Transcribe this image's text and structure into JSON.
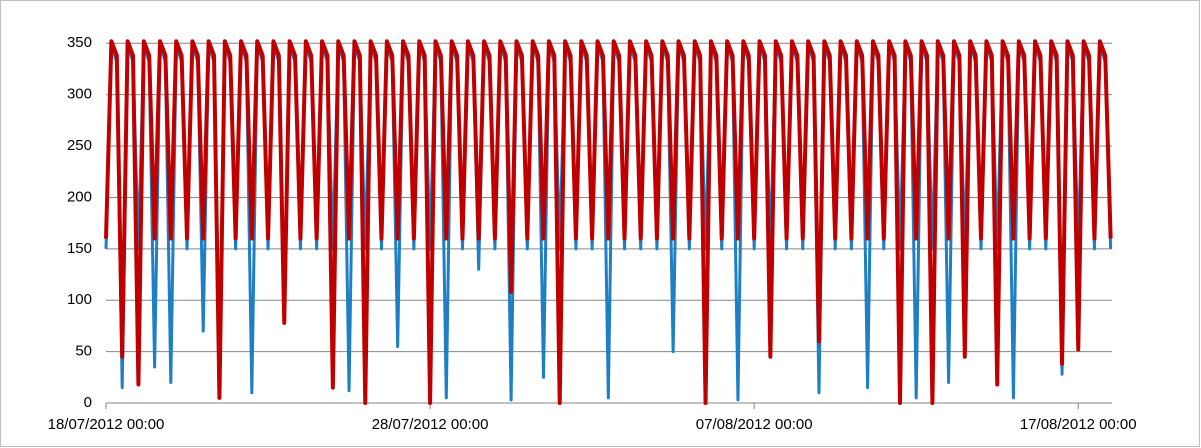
{
  "chart_data": {
    "type": "line",
    "x": [
      "18/07/2012 00:00",
      "18/07/2012 04:00",
      "18/07/2012 08:00",
      "18/07/2012 12:00",
      "18/07/2012 16:00",
      "18/07/2012 20:00",
      "19/07/2012 00:00",
      "19/07/2012 04:00",
      "19/07/2012 08:00",
      "19/07/2012 12:00",
      "19/07/2012 16:00",
      "19/07/2012 20:00",
      "20/07/2012 00:00",
      "20/07/2012 04:00",
      "20/07/2012 08:00",
      "20/07/2012 12:00",
      "20/07/2012 16:00",
      "20/07/2012 20:00",
      "21/07/2012 00:00",
      "21/07/2012 04:00",
      "21/07/2012 08:00",
      "21/07/2012 12:00",
      "21/07/2012 16:00",
      "21/07/2012 20:00",
      "22/07/2012 00:00",
      "22/07/2012 04:00",
      "22/07/2012 08:00",
      "22/07/2012 12:00",
      "22/07/2012 16:00",
      "22/07/2012 20:00",
      "23/07/2012 00:00",
      "23/07/2012 04:00",
      "23/07/2012 08:00",
      "23/07/2012 12:00",
      "23/07/2012 16:00",
      "23/07/2012 20:00",
      "24/07/2012 00:00",
      "24/07/2012 04:00",
      "24/07/2012 08:00",
      "24/07/2012 12:00",
      "24/07/2012 16:00",
      "24/07/2012 20:00",
      "25/07/2012 00:00",
      "25/07/2012 04:00",
      "25/07/2012 08:00",
      "25/07/2012 12:00",
      "25/07/2012 16:00",
      "25/07/2012 20:00",
      "26/07/2012 00:00",
      "26/07/2012 04:00",
      "26/07/2012 08:00",
      "26/07/2012 12:00",
      "26/07/2012 16:00",
      "26/07/2012 20:00",
      "27/07/2012 00:00",
      "27/07/2012 04:00",
      "27/07/2012 08:00",
      "27/07/2012 12:00",
      "27/07/2012 16:00",
      "27/07/2012 20:00",
      "28/07/2012 00:00",
      "28/07/2012 04:00",
      "28/07/2012 08:00",
      "28/07/2012 12:00",
      "28/07/2012 16:00",
      "28/07/2012 20:00",
      "29/07/2012 00:00",
      "29/07/2012 04:00",
      "29/07/2012 08:00",
      "29/07/2012 12:00",
      "29/07/2012 16:00",
      "29/07/2012 20:00",
      "30/07/2012 00:00",
      "30/07/2012 04:00",
      "30/07/2012 08:00",
      "30/07/2012 12:00",
      "30/07/2012 16:00",
      "30/07/2012 20:00",
      "31/07/2012 00:00",
      "31/07/2012 04:00",
      "31/07/2012 08:00",
      "31/07/2012 12:00",
      "31/07/2012 16:00",
      "31/07/2012 20:00",
      "01/08/2012 00:00",
      "01/08/2012 04:00",
      "01/08/2012 08:00",
      "01/08/2012 12:00",
      "01/08/2012 16:00",
      "01/08/2012 20:00",
      "02/08/2012 00:00",
      "02/08/2012 04:00",
      "02/08/2012 08:00",
      "02/08/2012 12:00",
      "02/08/2012 16:00",
      "02/08/2012 20:00",
      "03/08/2012 00:00",
      "03/08/2012 04:00",
      "03/08/2012 08:00",
      "03/08/2012 12:00",
      "03/08/2012 16:00",
      "03/08/2012 20:00",
      "04/08/2012 00:00",
      "04/08/2012 04:00",
      "04/08/2012 08:00",
      "04/08/2012 12:00",
      "04/08/2012 16:00",
      "04/08/2012 20:00",
      "05/08/2012 00:00",
      "05/08/2012 04:00",
      "05/08/2012 08:00",
      "05/08/2012 12:00",
      "05/08/2012 16:00",
      "05/08/2012 20:00",
      "06/08/2012 00:00",
      "06/08/2012 04:00",
      "06/08/2012 08:00",
      "06/08/2012 12:00",
      "06/08/2012 16:00",
      "06/08/2012 20:00",
      "07/08/2012 00:00",
      "07/08/2012 04:00",
      "07/08/2012 08:00",
      "07/08/2012 12:00",
      "07/08/2012 16:00",
      "07/08/2012 20:00",
      "08/08/2012 00:00",
      "08/08/2012 04:00",
      "08/08/2012 08:00",
      "08/08/2012 12:00",
      "08/08/2012 16:00",
      "08/08/2012 20:00",
      "09/08/2012 00:00",
      "09/08/2012 04:00",
      "09/08/2012 08:00",
      "09/08/2012 12:00",
      "09/08/2012 16:00",
      "09/08/2012 20:00",
      "10/08/2012 00:00",
      "10/08/2012 04:00",
      "10/08/2012 08:00",
      "10/08/2012 12:00",
      "10/08/2012 16:00",
      "10/08/2012 20:00",
      "11/08/2012 00:00",
      "11/08/2012 04:00",
      "11/08/2012 08:00",
      "11/08/2012 12:00",
      "11/08/2012 16:00",
      "11/08/2012 20:00",
      "12/08/2012 00:00",
      "12/08/2012 04:00",
      "12/08/2012 08:00",
      "12/08/2012 12:00",
      "12/08/2012 16:00",
      "12/08/2012 20:00",
      "13/08/2012 00:00",
      "13/08/2012 04:00",
      "13/08/2012 08:00",
      "13/08/2012 12:00",
      "13/08/2012 16:00",
      "13/08/2012 20:00",
      "14/08/2012 00:00",
      "14/08/2012 04:00",
      "14/08/2012 08:00",
      "14/08/2012 12:00",
      "14/08/2012 16:00",
      "14/08/2012 20:00",
      "15/08/2012 00:00",
      "15/08/2012 04:00",
      "15/08/2012 08:00",
      "15/08/2012 12:00",
      "15/08/2012 16:00",
      "15/08/2012 20:00",
      "16/08/2012 00:00",
      "16/08/2012 04:00",
      "16/08/2012 08:00",
      "16/08/2012 12:00",
      "16/08/2012 16:00",
      "16/08/2012 20:00",
      "17/08/2012 00:00",
      "17/08/2012 04:00",
      "17/08/2012 08:00",
      "17/08/2012 12:00",
      "17/08/2012 16:00",
      "17/08/2012 20:00",
      "18/08/2012 00:00"
    ],
    "series": [
      {
        "color": "#1f7fc4",
        "values": [
          150,
          348,
          332,
          15,
          348,
          332,
          150,
          348,
          332,
          35,
          348,
          332,
          20,
          348,
          332,
          150,
          348,
          332,
          70,
          348,
          332,
          40,
          348,
          332,
          150,
          348,
          332,
          10,
          348,
          332,
          150,
          348,
          332,
          90,
          348,
          332,
          150,
          348,
          332,
          150,
          348,
          332,
          150,
          348,
          332,
          12,
          348,
          332,
          150,
          348,
          332,
          150,
          348,
          332,
          55,
          348,
          332,
          150,
          348,
          332,
          150,
          348,
          332,
          5,
          348,
          332,
          150,
          348,
          332,
          130,
          348,
          332,
          150,
          348,
          332,
          3,
          348,
          332,
          150,
          348,
          332,
          25,
          348,
          332,
          150,
          348,
          332,
          150,
          348,
          332,
          150,
          348,
          332,
          5,
          348,
          332,
          150,
          348,
          332,
          150,
          348,
          332,
          150,
          348,
          332,
          50,
          348,
          332,
          150,
          348,
          332,
          150,
          348,
          332,
          150,
          348,
          332,
          3,
          348,
          332,
          150,
          348,
          332,
          150,
          348,
          332,
          150,
          348,
          332,
          150,
          348,
          332,
          10,
          348,
          332,
          150,
          348,
          332,
          150,
          348,
          332,
          15,
          348,
          332,
          150,
          348,
          332,
          150,
          348,
          332,
          5,
          348,
          332,
          150,
          348,
          332,
          20,
          348,
          332,
          150,
          348,
          332,
          150,
          348,
          332,
          150,
          348,
          332,
          5,
          348,
          332,
          150,
          348,
          332,
          150,
          348,
          332,
          28,
          348,
          332,
          150,
          348,
          332,
          150,
          348,
          332,
          150
        ]
      },
      {
        "color": "#c00000",
        "values": [
          160,
          352,
          338,
          45,
          352,
          338,
          18,
          352,
          338,
          160,
          352,
          338,
          160,
          352,
          338,
          160,
          352,
          338,
          160,
          352,
          338,
          5,
          352,
          338,
          160,
          352,
          338,
          160,
          352,
          338,
          160,
          352,
          338,
          78,
          352,
          338,
          160,
          352,
          338,
          160,
          352,
          338,
          15,
          352,
          338,
          160,
          352,
          338,
          0,
          352,
          338,
          160,
          352,
          338,
          160,
          352,
          338,
          160,
          352,
          338,
          0,
          352,
          338,
          160,
          352,
          338,
          160,
          352,
          338,
          160,
          352,
          338,
          160,
          352,
          338,
          108,
          352,
          338,
          160,
          352,
          338,
          160,
          352,
          338,
          0,
          352,
          338,
          160,
          352,
          338,
          160,
          352,
          338,
          160,
          352,
          338,
          160,
          352,
          338,
          160,
          352,
          338,
          160,
          352,
          338,
          160,
          352,
          338,
          160,
          352,
          338,
          0,
          352,
          338,
          160,
          352,
          338,
          160,
          352,
          338,
          160,
          352,
          338,
          45,
          352,
          338,
          160,
          352,
          338,
          160,
          352,
          338,
          60,
          352,
          338,
          160,
          352,
          338,
          160,
          352,
          338,
          160,
          352,
          338,
          160,
          352,
          338,
          0,
          352,
          338,
          160,
          352,
          338,
          0,
          352,
          338,
          160,
          352,
          338,
          45,
          352,
          338,
          160,
          352,
          338,
          18,
          352,
          338,
          160,
          352,
          338,
          160,
          352,
          338,
          160,
          352,
          338,
          38,
          352,
          338,
          52,
          352,
          338,
          160,
          352,
          338,
          160
        ]
      }
    ],
    "xlim": [
      "18/07/2012 00:00",
      "18/08/2012 01:00"
    ],
    "xticks": [
      "18/07/2012 00:00",
      "28/07/2012 00:00",
      "07/08/2012 00:00",
      "17/08/2012 00:00"
    ],
    "ylim": [
      0,
      360
    ],
    "yticks": [
      0,
      50,
      100,
      150,
      200,
      250,
      300,
      350
    ],
    "grid": true
  }
}
